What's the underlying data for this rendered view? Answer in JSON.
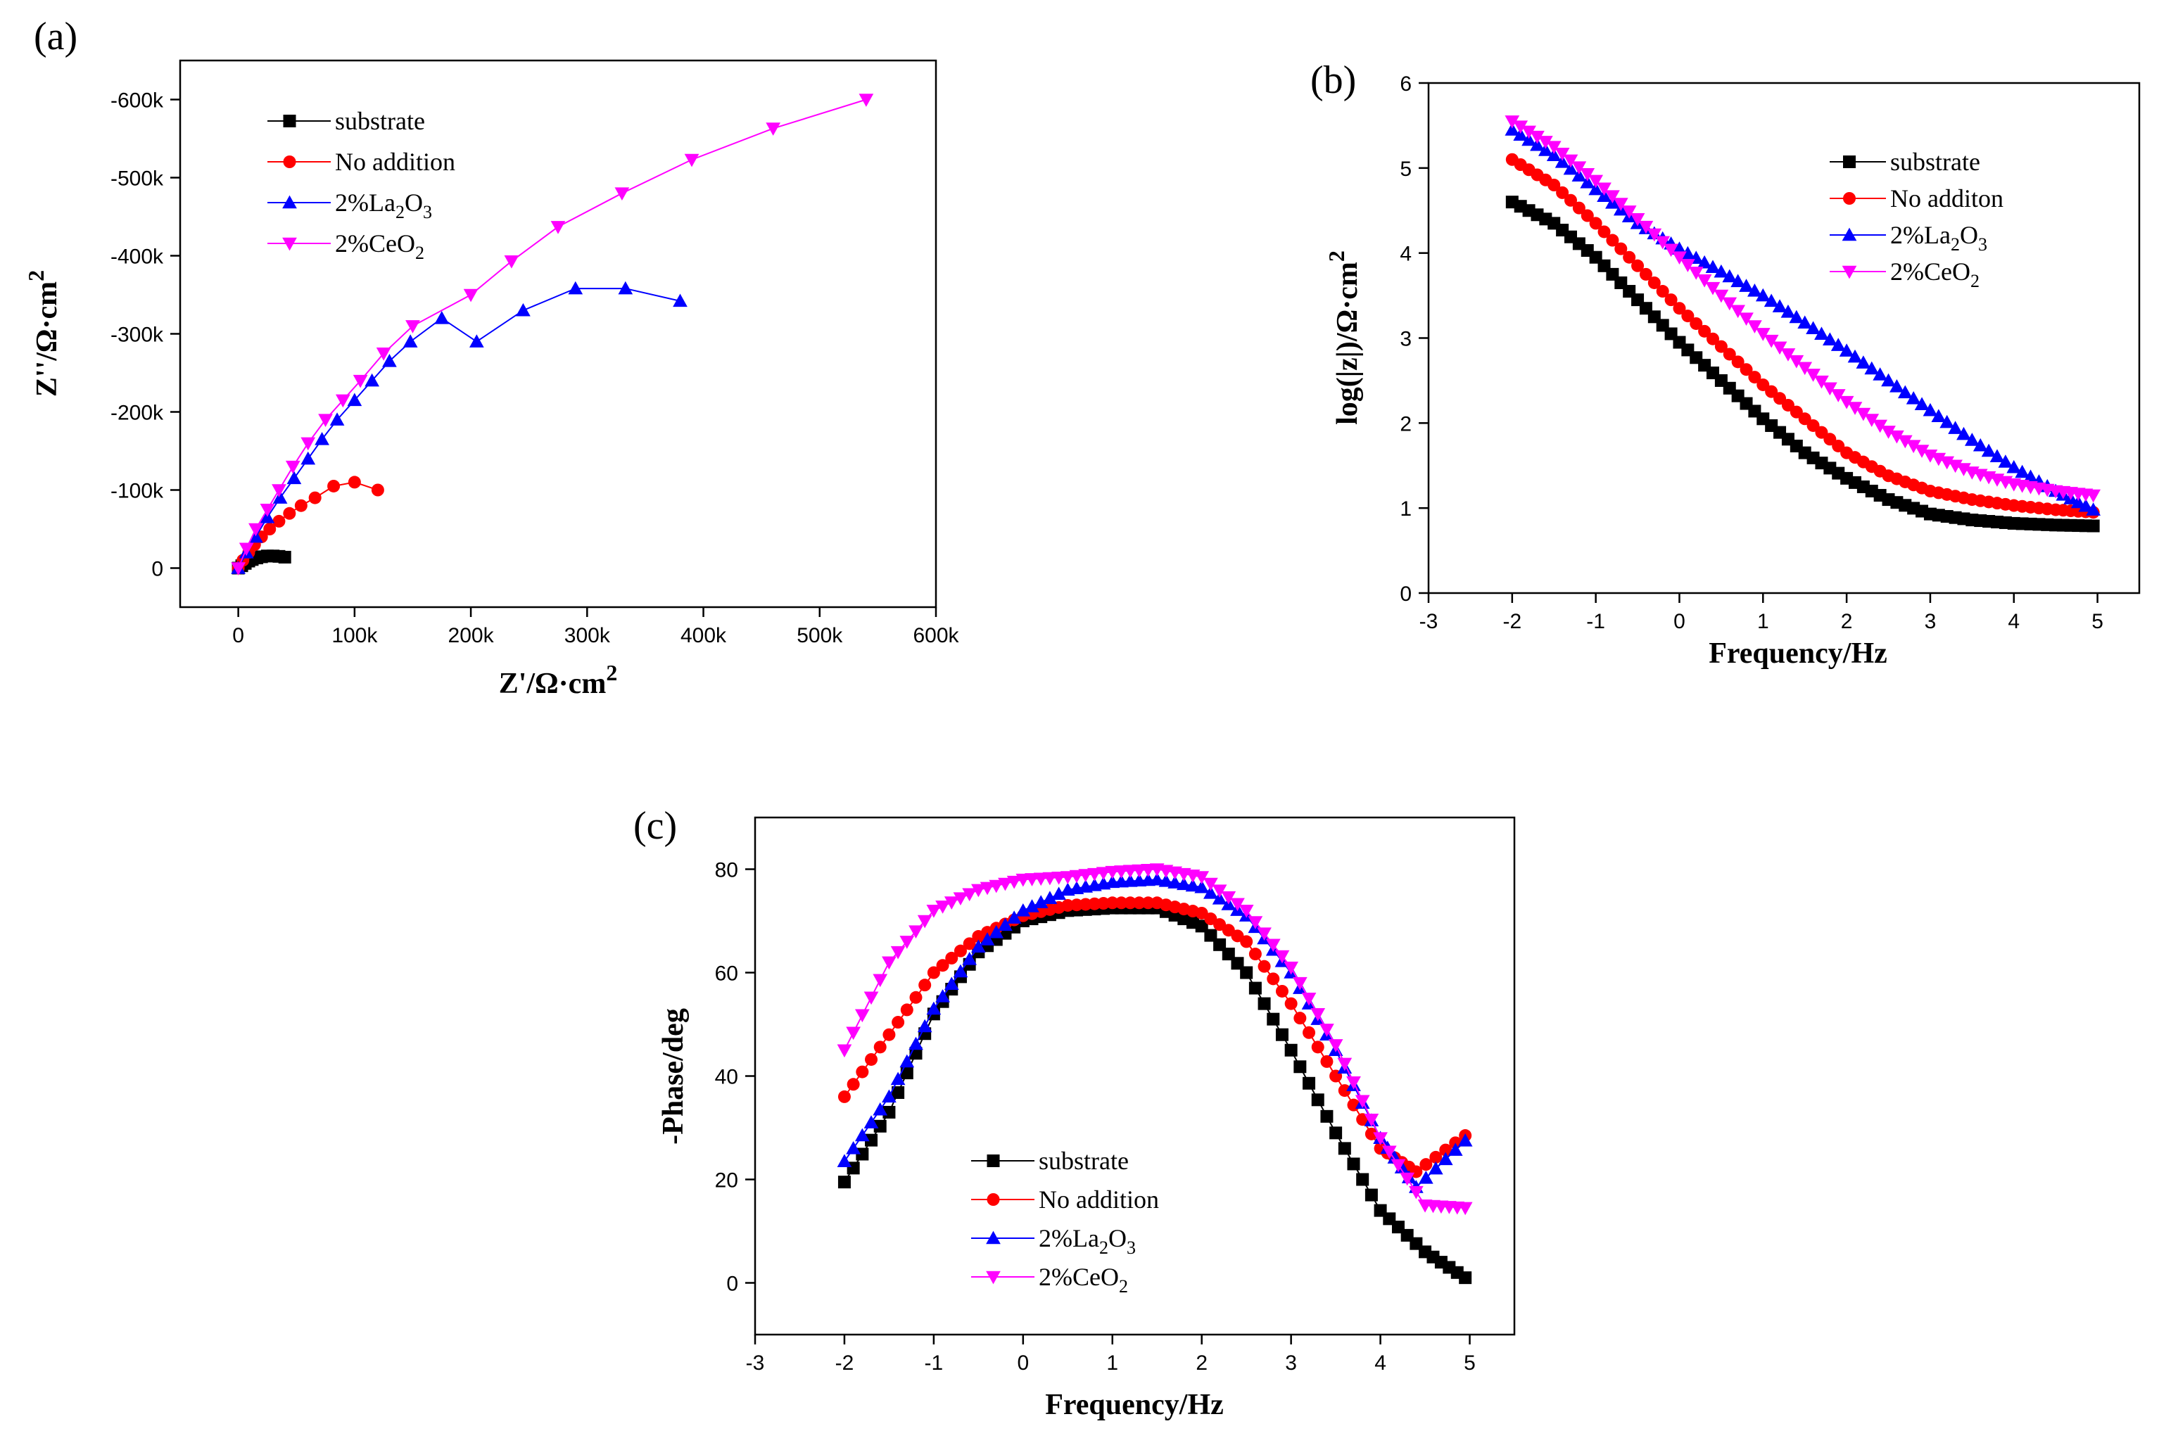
{
  "colors": {
    "substrate": "#000000",
    "no_addition": "#ff0000",
    "la2o3": "#0000ff",
    "ceo2": "#ff00ff"
  },
  "chart_data": [
    {
      "id": "a",
      "type": "scatter",
      "panel_label": "(a)",
      "xlabel": "Z'/Ω·cm",
      "xlabel_sup": "2",
      "ylabel": "Z''/Ω·cm",
      "ylabel_sup": "2",
      "xlim": [
        -50000,
        600000
      ],
      "ylim": [
        50000,
        -650000
      ],
      "xticks": [
        0,
        100000,
        200000,
        300000,
        400000,
        500000,
        600000
      ],
      "xtick_labels": [
        "0",
        "100k",
        "200k",
        "300k",
        "400k",
        "500k",
        "600k"
      ],
      "yticks": [
        0,
        -100000,
        -200000,
        -300000,
        -400000,
        -500000,
        -600000
      ],
      "ytick_labels": [
        "0",
        "-100k",
        "-200k",
        "-300k",
        "-400k",
        "-500k",
        "-600k"
      ],
      "legend_position": "top-left",
      "legend": [
        {
          "label": "substrate",
          "marker": "square",
          "color_key": "substrate"
        },
        {
          "label": "No addition",
          "marker": "circle",
          "color_key": "no_addition"
        },
        {
          "label": "2%La",
          "sub1": "2",
          "mid": "O",
          "sub2": "3",
          "marker": "triangle-up",
          "color_key": "la2o3"
        },
        {
          "label": "2%CeO",
          "sub1": "2",
          "mid": "",
          "sub2": "",
          "marker": "triangle-down",
          "color_key": "ceo2"
        }
      ],
      "series": [
        {
          "name": "substrate",
          "marker": "square",
          "color_key": "substrate",
          "points": [
            [
              0,
              0
            ],
            [
              3000,
              -3000
            ],
            [
              6000,
              -6000
            ],
            [
              9000,
              -9000
            ],
            [
              12000,
              -11000
            ],
            [
              16000,
              -13000
            ],
            [
              20000,
              -14500
            ],
            [
              25000,
              -15500
            ],
            [
              30000,
              -15500
            ],
            [
              35000,
              -15000
            ],
            [
              40000,
              -14000
            ]
          ]
        },
        {
          "name": "No addition",
          "marker": "circle",
          "color_key": "no_addition",
          "points": [
            [
              0,
              0
            ],
            [
              4000,
              -10000
            ],
            [
              9000,
              -20000
            ],
            [
              14000,
              -30000
            ],
            [
              20000,
              -40000
            ],
            [
              27000,
              -50000
            ],
            [
              35000,
              -60000
            ],
            [
              44000,
              -70000
            ],
            [
              54000,
              -80000
            ],
            [
              66000,
              -90000
            ],
            [
              82000,
              -105000
            ],
            [
              100000,
              -110000
            ],
            [
              120000,
              -100000
            ]
          ]
        },
        {
          "name": "2%La2O3",
          "marker": "triangle-up",
          "color_key": "la2o3",
          "points": [
            [
              0,
              0
            ],
            [
              7000,
              -20000
            ],
            [
              15000,
              -40000
            ],
            [
              25000,
              -65000
            ],
            [
              36000,
              -90000
            ],
            [
              48000,
              -115000
            ],
            [
              60000,
              -140000
            ],
            [
              72000,
              -165000
            ],
            [
              85000,
              -190000
            ],
            [
              100000,
              -215000
            ],
            [
              115000,
              -240000
            ],
            [
              130000,
              -265000
            ],
            [
              148000,
              -290000
            ],
            [
              175000,
              -320000
            ],
            [
              205000,
              -290000
            ],
            [
              245000,
              -330000
            ],
            [
              290000,
              -358000
            ],
            [
              333000,
              -358000
            ],
            [
              380000,
              -342000
            ]
          ]
        },
        {
          "name": "2%CeO2",
          "marker": "triangle-down",
          "color_key": "ceo2",
          "points": [
            [
              0,
              0
            ],
            [
              7000,
              -25000
            ],
            [
              15000,
              -50000
            ],
            [
              25000,
              -75000
            ],
            [
              35000,
              -100000
            ],
            [
              47000,
              -130000
            ],
            [
              60000,
              -160000
            ],
            [
              75000,
              -190000
            ],
            [
              90000,
              -215000
            ],
            [
              105000,
              -240000
            ],
            [
              125000,
              -275000
            ],
            [
              150000,
              -310000
            ],
            [
              200000,
              -350000
            ],
            [
              235000,
              -393000
            ],
            [
              275000,
              -437000
            ],
            [
              330000,
              -480000
            ],
            [
              390000,
              -523000
            ],
            [
              460000,
              -563000
            ],
            [
              540000,
              -600000
            ]
          ]
        }
      ]
    },
    {
      "id": "b",
      "type": "scatter",
      "panel_label": "(b)",
      "xlabel": "Frequency/Hz",
      "ylabel": "log(|z|)/Ω·cm",
      "ylabel_sup": "2",
      "xlim": [
        -3,
        5.5
      ],
      "ylim": [
        0,
        6
      ],
      "xticks": [
        -3,
        -2,
        -1,
        0,
        1,
        2,
        3,
        4,
        5
      ],
      "xtick_labels": [
        "-3",
        "-2",
        "-1",
        "0",
        "1",
        "2",
        "3",
        "4",
        "5"
      ],
      "yticks": [
        0,
        1,
        2,
        3,
        4,
        5,
        6
      ],
      "ytick_labels": [
        "0",
        "1",
        "2",
        "3",
        "4",
        "5",
        "6"
      ],
      "legend_position": "top-right",
      "legend": [
        {
          "label": "substrate",
          "marker": "square",
          "color_key": "substrate"
        },
        {
          "label": "No additon",
          "marker": "circle",
          "color_key": "no_addition"
        },
        {
          "label": "2%La",
          "sub1": "2",
          "mid": "O",
          "sub2": "3",
          "marker": "triangle-up",
          "color_key": "la2o3"
        },
        {
          "label": "2%CeO",
          "sub1": "2",
          "mid": "",
          "sub2": "",
          "marker": "triangle-down",
          "color_key": "ceo2"
        }
      ],
      "series": [
        {
          "name": "substrate",
          "marker": "square",
          "color_key": "substrate",
          "points": [
            [
              -2,
              4.6
            ],
            [
              -1.5,
              4.35
            ],
            [
              -1,
              3.95
            ],
            [
              -0.5,
              3.45
            ],
            [
              0,
              2.95
            ],
            [
              0.5,
              2.5
            ],
            [
              1,
              2.05
            ],
            [
              1.5,
              1.65
            ],
            [
              2,
              1.35
            ],
            [
              2.5,
              1.1
            ],
            [
              3,
              0.93
            ],
            [
              3.5,
              0.86
            ],
            [
              4,
              0.82
            ],
            [
              4.5,
              0.8
            ],
            [
              4.95,
              0.79
            ]
          ]
        },
        {
          "name": "No additon",
          "marker": "circle",
          "color_key": "no_addition",
          "points": [
            [
              -2,
              5.1
            ],
            [
              -1.5,
              4.8
            ],
            [
              -1,
              4.35
            ],
            [
              -0.5,
              3.85
            ],
            [
              0,
              3.35
            ],
            [
              0.5,
              2.9
            ],
            [
              1,
              2.45
            ],
            [
              1.5,
              2.05
            ],
            [
              2,
              1.65
            ],
            [
              2.5,
              1.38
            ],
            [
              3,
              1.2
            ],
            [
              3.5,
              1.1
            ],
            [
              4,
              1.03
            ],
            [
              4.5,
              0.98
            ],
            [
              4.95,
              0.95
            ]
          ]
        },
        {
          "name": "2%La2O3",
          "marker": "triangle-up",
          "color_key": "la2o3",
          "points": [
            [
              -2,
              5.45
            ],
            [
              -1.5,
              5.15
            ],
            [
              -1,
              4.75
            ],
            [
              -0.5,
              4.35
            ],
            [
              0,
              4.05
            ],
            [
              0.5,
              3.78
            ],
            [
              1,
              3.5
            ],
            [
              1.5,
              3.18
            ],
            [
              2,
              2.85
            ],
            [
              2.5,
              2.5
            ],
            [
              3,
              2.15
            ],
            [
              3.5,
              1.8
            ],
            [
              4,
              1.48
            ],
            [
              4.5,
              1.2
            ],
            [
              4.95,
              0.98
            ]
          ]
        },
        {
          "name": "2%CeO2",
          "marker": "triangle-down",
          "color_key": "ceo2",
          "points": [
            [
              -2,
              5.55
            ],
            [
              -1.5,
              5.25
            ],
            [
              -1,
              4.85
            ],
            [
              -0.5,
              4.4
            ],
            [
              0,
              3.95
            ],
            [
              0.5,
              3.5
            ],
            [
              1,
              3.05
            ],
            [
              1.5,
              2.65
            ],
            [
              2,
              2.25
            ],
            [
              2.5,
              1.9
            ],
            [
              3,
              1.62
            ],
            [
              3.5,
              1.42
            ],
            [
              4,
              1.28
            ],
            [
              4.5,
              1.2
            ],
            [
              4.95,
              1.15
            ]
          ]
        }
      ]
    },
    {
      "id": "c",
      "type": "scatter",
      "panel_label": "(c)",
      "xlabel": "Frequency/Hz",
      "ylabel": "-Phase/deg",
      "xlim": [
        -3,
        5.5
      ],
      "ylim": [
        -10,
        90
      ],
      "xticks": [
        -3,
        -2,
        -1,
        0,
        1,
        2,
        3,
        4,
        5
      ],
      "xtick_labels": [
        "-3",
        "-2",
        "-1",
        "0",
        "1",
        "2",
        "3",
        "4",
        "5"
      ],
      "yticks": [
        0,
        20,
        40,
        60,
        80
      ],
      "ytick_labels": [
        "0",
        "20",
        "40",
        "60",
        "80"
      ],
      "legend_position": "bottom-left",
      "legend": [
        {
          "label": "substrate",
          "marker": "square",
          "color_key": "substrate"
        },
        {
          "label": "No addition",
          "marker": "circle",
          "color_key": "no_addition"
        },
        {
          "label": "2%La",
          "sub1": "2",
          "mid": "O",
          "sub2": "3",
          "marker": "triangle-up",
          "color_key": "la2o3"
        },
        {
          "label": "2%CeO",
          "sub1": "2",
          "mid": "",
          "sub2": "",
          "marker": "triangle-down",
          "color_key": "ceo2"
        }
      ],
      "series": [
        {
          "name": "substrate",
          "marker": "square",
          "color_key": "substrate",
          "points": [
            [
              -2,
              19.5
            ],
            [
              -1.5,
              33
            ],
            [
              -1,
              52
            ],
            [
              -0.5,
              64
            ],
            [
              0,
              70
            ],
            [
              0.5,
              72
            ],
            [
              1,
              72.5
            ],
            [
              1.5,
              72.5
            ],
            [
              2,
              69
            ],
            [
              2.5,
              60
            ],
            [
              3,
              45
            ],
            [
              3.5,
              29
            ],
            [
              4,
              14
            ],
            [
              4.5,
              6
            ],
            [
              4.95,
              1
            ]
          ]
        },
        {
          "name": "No addition",
          "marker": "circle",
          "color_key": "no_addition",
          "points": [
            [
              -2,
              36
            ],
            [
              -1.5,
              48
            ],
            [
              -1,
              60
            ],
            [
              -0.5,
              67
            ],
            [
              0,
              71
            ],
            [
              0.5,
              73
            ],
            [
              1,
              73.5
            ],
            [
              1.5,
              73.5
            ],
            [
              2,
              71.5
            ],
            [
              2.5,
              66
            ],
            [
              3,
              54
            ],
            [
              3.5,
              40
            ],
            [
              4,
              26
            ],
            [
              4.4,
              21.5
            ],
            [
              4.95,
              28.5
            ]
          ]
        },
        {
          "name": "2%La2O3",
          "marker": "triangle-up",
          "color_key": "la2o3",
          "points": [
            [
              -2,
              23.5
            ],
            [
              -1.5,
              36
            ],
            [
              -1,
              53
            ],
            [
              -0.5,
              65
            ],
            [
              0,
              72
            ],
            [
              0.5,
              76
            ],
            [
              1,
              77.5
            ],
            [
              1.5,
              78
            ],
            [
              2,
              76.5
            ],
            [
              2.5,
              71
            ],
            [
              3,
              60
            ],
            [
              3.5,
              45
            ],
            [
              4,
              28
            ],
            [
              4.4,
              18.5
            ],
            [
              4.95,
              27.5
            ]
          ]
        },
        {
          "name": "2%CeO2",
          "marker": "triangle-down",
          "color_key": "ceo2",
          "points": [
            [
              -2,
              45
            ],
            [
              -1.5,
              62
            ],
            [
              -1,
              72
            ],
            [
              -0.5,
              76
            ],
            [
              0,
              78
            ],
            [
              0.5,
              78.5
            ],
            [
              1,
              79.5
            ],
            [
              1.5,
              80
            ],
            [
              2,
              78.5
            ],
            [
              2.5,
              72
            ],
            [
              3,
              61
            ],
            [
              3.5,
              46
            ],
            [
              4,
              28
            ],
            [
              4.5,
              15
            ],
            [
              4.95,
              14.5
            ]
          ]
        }
      ]
    }
  ]
}
